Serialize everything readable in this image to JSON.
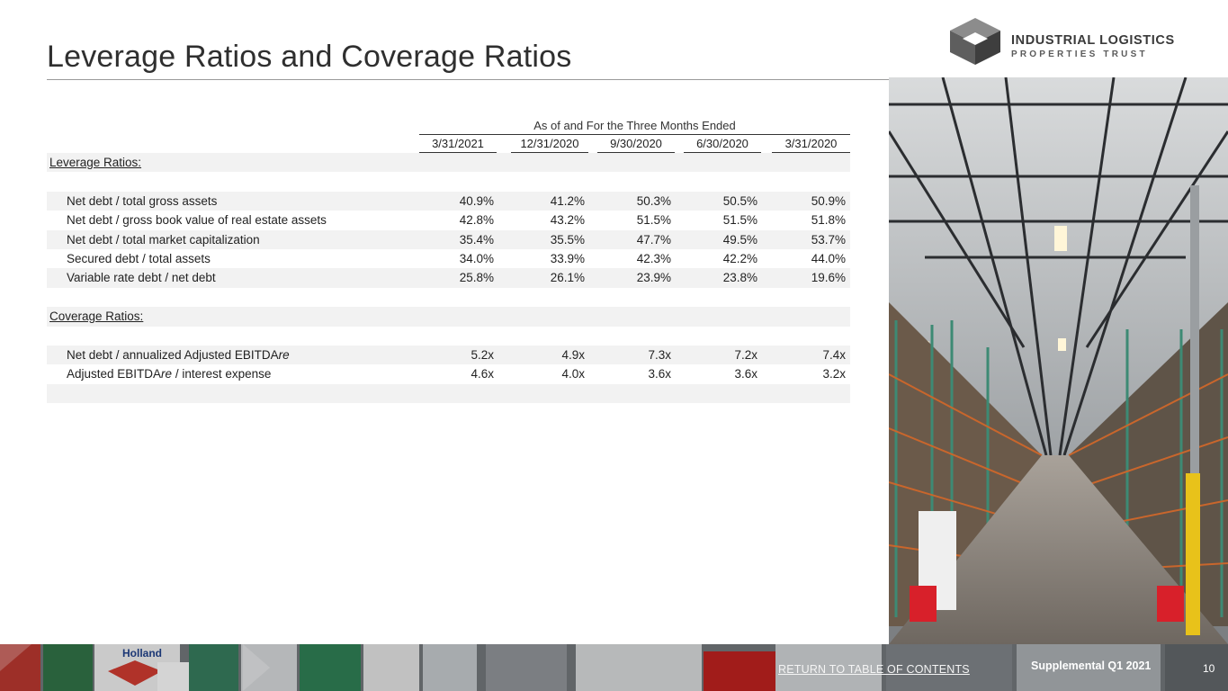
{
  "title": "Leverage Ratios and Coverage Ratios",
  "logo": {
    "line1": "INDUSTRIAL LOGISTICS",
    "line2": "PROPERTIES TRUST"
  },
  "table": {
    "period_header": "As of and For the Three Months Ended",
    "columns": [
      "3/31/2021",
      "12/31/2020",
      "9/30/2020",
      "6/30/2020",
      "3/31/2020"
    ],
    "sections": {
      "leverage": "Leverage Ratios:",
      "coverage": "Coverage Ratios:"
    },
    "rows": {
      "net_debt_gross_assets": {
        "label": "Net debt / total gross assets",
        "values": [
          "40.9%",
          "41.2%",
          "50.3%",
          "50.5%",
          "50.9%"
        ]
      },
      "net_debt_book_value": {
        "label": "Net debt / gross book value of real estate assets",
        "values": [
          "42.8%",
          "43.2%",
          "51.5%",
          "51.5%",
          "51.8%"
        ]
      },
      "net_debt_market_cap": {
        "label": "Net debt / total market capitalization",
        "values": [
          "35.4%",
          "35.5%",
          "47.7%",
          "49.5%",
          "53.7%"
        ]
      },
      "secured_debt_assets": {
        "label": "Secured debt / total assets",
        "values": [
          "34.0%",
          "33.9%",
          "42.3%",
          "42.2%",
          "44.0%"
        ]
      },
      "variable_rate_debt": {
        "label": "Variable rate debt / net debt",
        "values": [
          "25.8%",
          "26.1%",
          "23.9%",
          "23.8%",
          "19.6%"
        ]
      },
      "net_debt_ebitda": {
        "label_prefix": "Net debt / annualized Adjusted EBITDA",
        "label_suffix": "re",
        "values": [
          "5.2x",
          "4.9x",
          "7.3x",
          "7.2x",
          "7.4x"
        ]
      },
      "ebitda_interest": {
        "label_prefix": "Adjusted EBITDA",
        "label_suffix": "re",
        "label_rest": " / interest expense",
        "values": [
          "4.6x",
          "4.0x",
          "3.6x",
          "3.6x",
          "3.2x"
        ]
      }
    }
  },
  "footer": {
    "link": "RETURN TO TABLE OF CONTENTS",
    "supplemental": "Supplemental Q1 2021",
    "page_number": "10",
    "truck_brand": "Holland"
  }
}
